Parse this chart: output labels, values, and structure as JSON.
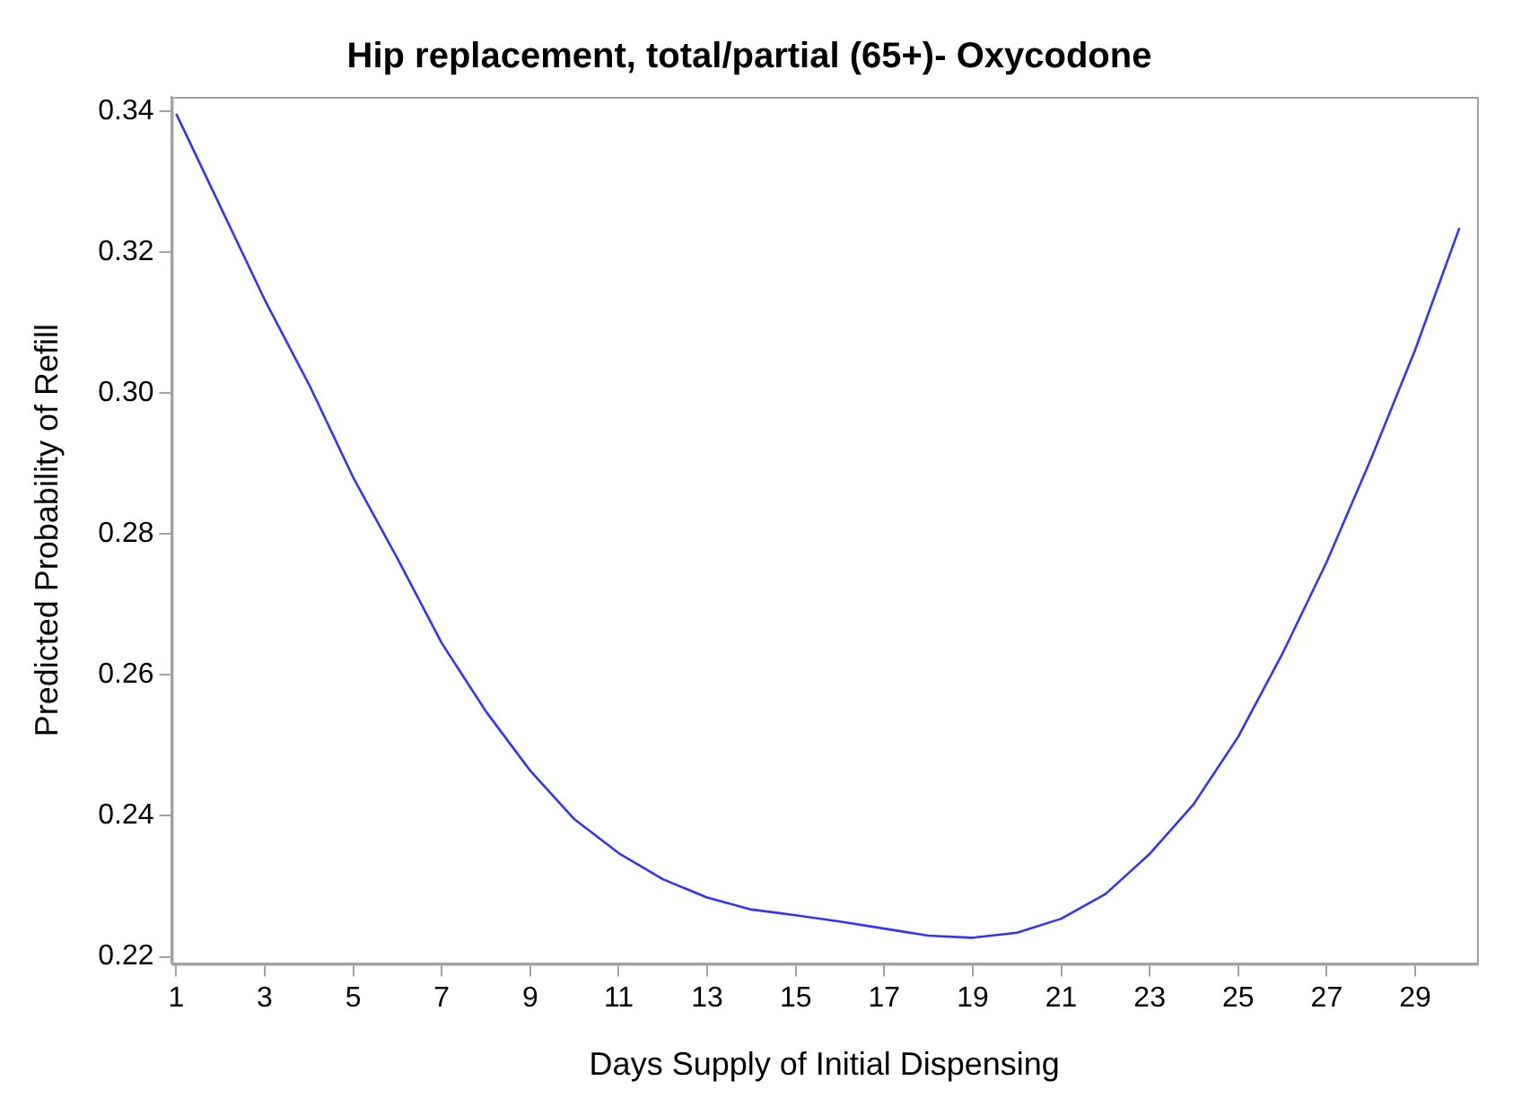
{
  "chart_data": {
    "type": "line",
    "title": "Hip replacement, total/partial (65+)- Oxycodone",
    "xlabel": "Days Supply of Initial Dispensing",
    "ylabel": "Predicted Probability of Refill",
    "x": [
      1,
      2,
      3,
      4,
      5,
      6,
      7,
      8,
      9,
      10,
      11,
      12,
      13,
      14,
      15,
      16,
      17,
      18,
      19,
      20,
      21,
      22,
      23,
      24,
      25,
      26,
      27,
      28,
      29,
      30
    ],
    "series": [
      {
        "color": "#3333ff",
        "values": [
          0.3396,
          0.3264,
          0.3132,
          0.3012,
          0.288,
          0.2765,
          0.2645,
          0.2548,
          0.2464,
          0.2395,
          0.2347,
          0.231,
          0.2284,
          0.2267,
          0.2259,
          0.225,
          0.224,
          0.223,
          0.2227,
          0.2234,
          0.2254,
          0.2289,
          0.2346,
          0.2417,
          0.2512,
          0.263,
          0.276,
          0.2906,
          0.3061,
          0.3234
        ]
      }
    ],
    "xlim": [
      0.9,
      30.4
    ],
    "xticks": [
      1,
      3,
      5,
      7,
      9,
      11,
      13,
      15,
      17,
      19,
      21,
      23,
      25,
      27,
      29
    ],
    "ylim": [
      0.219,
      0.342
    ],
    "yticks": [
      0.22,
      0.24,
      0.26,
      0.28,
      {
        "value": 0.3,
        "label": "0.30"
      },
      0.32,
      0.34
    ],
    "grid": false,
    "legend": false,
    "marker": "none",
    "line_style": "solid"
  }
}
